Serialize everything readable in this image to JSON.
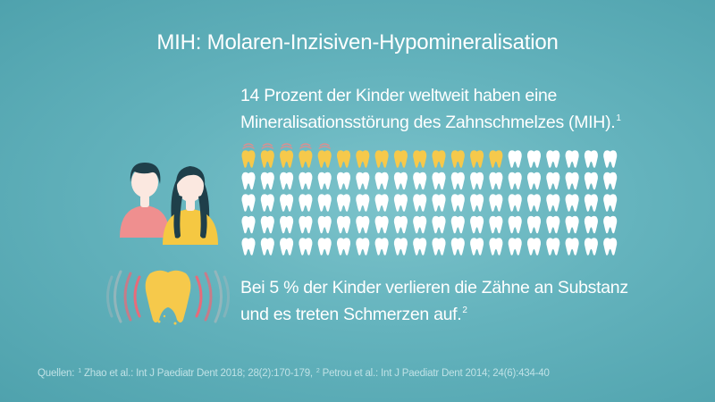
{
  "title": "MIH: Molaren-Inzisiven-Hypomineralisation",
  "stat_1": {
    "line_1": "14 Prozent der Kinder weltweit haben eine",
    "line_2": "Mineralisationsstörung des Zahnschmelzes (MIH).",
    "ref": "1"
  },
  "stat_2": {
    "line_1": "Bei 5 % der Kinder verlieren die Zähne an Substanz",
    "line_2": "und es treten Schmerzen auf.",
    "ref": "2"
  },
  "sources": {
    "label": "Quellen:",
    "ref_1": "1",
    "text_1": "Zhao et al.: Int J Paediatr Dent 2018; 28(2):170-179,",
    "ref_2": "2",
    "text_2": "Petrou et al.: Int J Paediatr Dent 2014; 24(6):434-40"
  },
  "tooth_grid": {
    "rows": 5,
    "columns": 20,
    "affected_count": 14,
    "pain_count": 5,
    "colors": {
      "healthy": "#ffffff",
      "affected": "#f6c94b",
      "pain_marks": "#e88a8a"
    }
  },
  "illustration": {
    "colors": {
      "hair": "#1f3f4a",
      "skin": "#fbe8e0",
      "boy_shirt": "#ef8f8f",
      "girl_shirt": "#f5c842",
      "tooth": "#f6c94b",
      "pain_waves_inner": "#e76b7a",
      "pain_waves_outer": "#9fb6bc"
    }
  }
}
